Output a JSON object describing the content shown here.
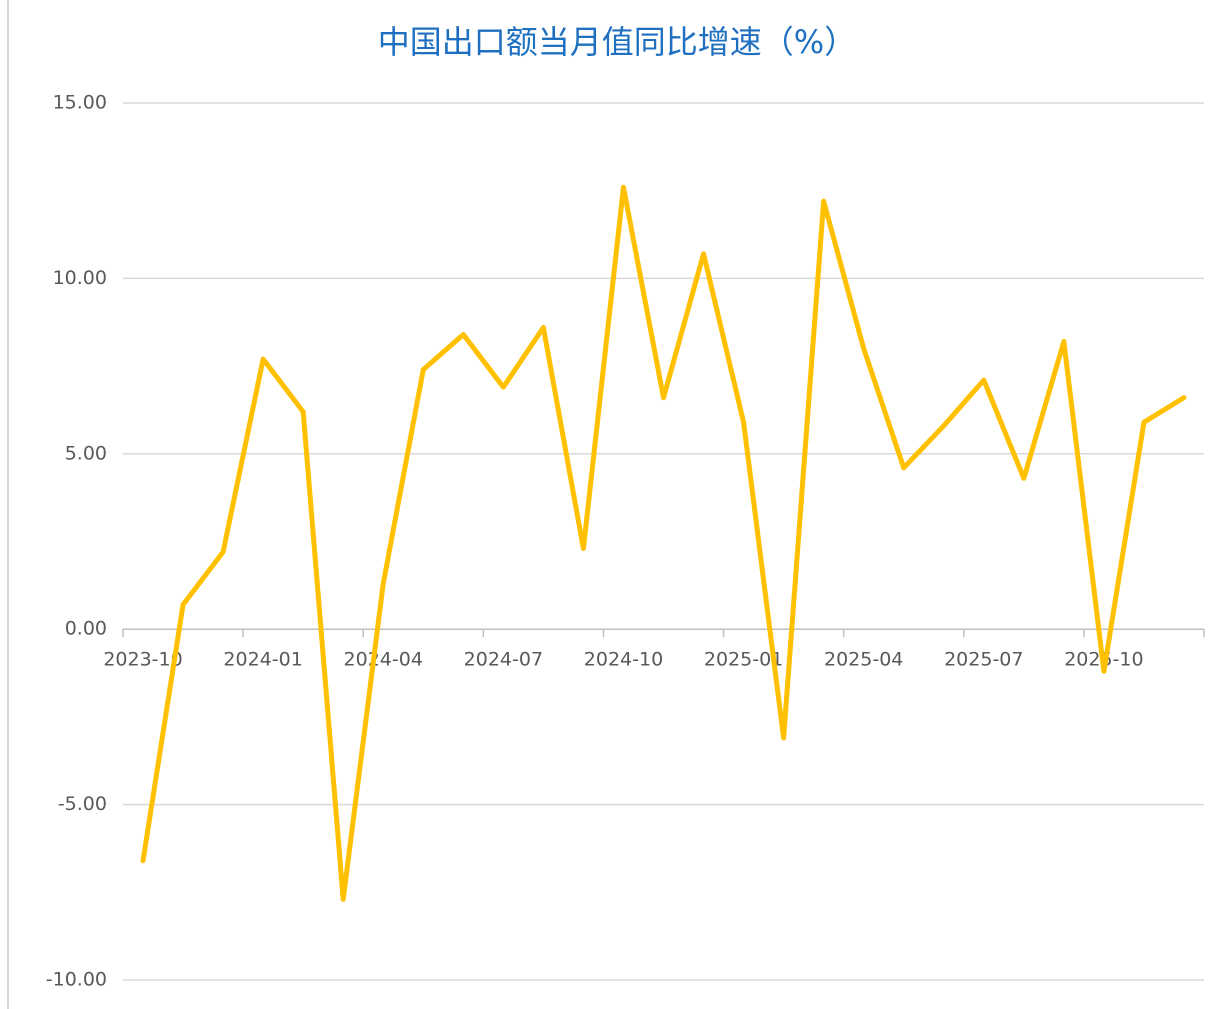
{
  "chart_data": {
    "type": "line",
    "title": "中国出口额当月值同比增速（%）",
    "categories": [
      "2023-10",
      null,
      null,
      "2024-01",
      null,
      null,
      "2024-04",
      null,
      null,
      "2024-07",
      null,
      null,
      "2024-10",
      null,
      null,
      "2025-01",
      null,
      null,
      "2025-04",
      null,
      null,
      "2025-07",
      null,
      null,
      "2025-10",
      null,
      null
    ],
    "series": [
      {
        "name": "中国出口额当月值同比增速",
        "color": "#ffc000",
        "values": [
          -6.6,
          0.7,
          2.2,
          7.7,
          6.2,
          -7.7,
          1.3,
          7.4,
          8.4,
          6.9,
          8.6,
          2.3,
          12.6,
          6.6,
          10.7,
          5.9,
          -3.1,
          12.2,
          8.0,
          4.6,
          5.8,
          7.1,
          4.3,
          8.2,
          -1.2,
          5.9,
          6.6
        ]
      }
    ],
    "ylim": [
      -10,
      15
    ],
    "yticks": [
      {
        "value": -10,
        "label": "-10.00"
      },
      {
        "value": -5,
        "label": "-5.00"
      },
      {
        "value": 0,
        "label": "0.00"
      },
      {
        "value": 5,
        "label": "5.00"
      },
      {
        "value": 10,
        "label": "10.00"
      },
      {
        "value": 15,
        "label": "15.00"
      }
    ],
    "grid": true
  }
}
